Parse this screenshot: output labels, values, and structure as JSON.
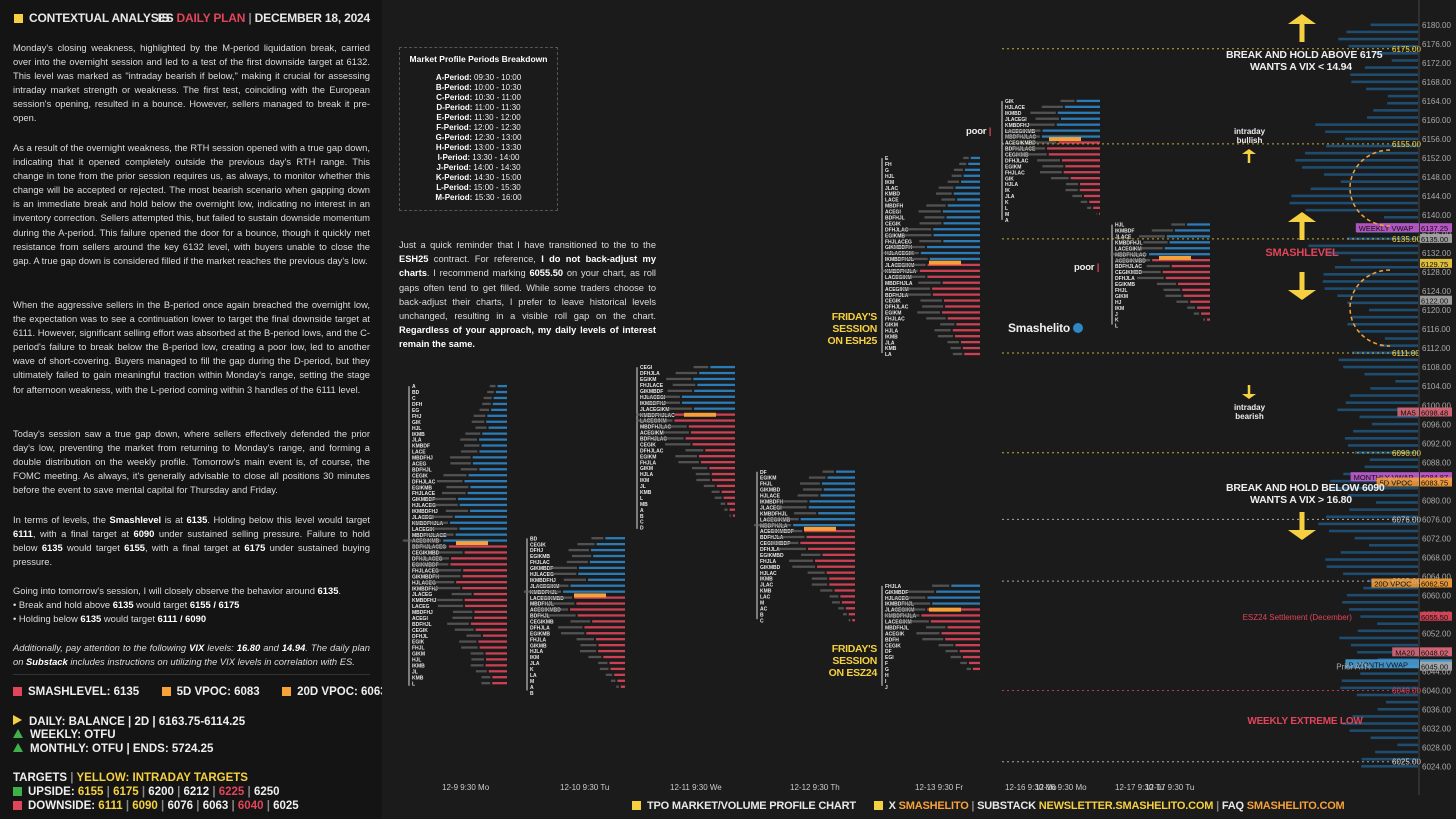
{
  "header": {
    "title": "CONTEXTUAL ANALYSIS",
    "plan_prefix": "ES",
    "plan_word": "DAILY PLAN",
    "date": "DECEMBER 18, 2024"
  },
  "paragraphs": [
    "Monday's closing weakness, highlighted by the M-period liquidation break, carried over into the overnight session and led to a test of the first downside target at 6132. This level was marked as \"intraday bearish if below,\" making it crucial for assessing intraday market strength or weakness. The first test, coinciding with the European session's opening, resulted in a bounce. However, sellers managed to break it pre-open.",
    "As a result of the overnight weakness, the RTH session opened with a true gap down, indicating that it opened completely outside the previous day's RTH range. This change in tone from the prior session requires us, as always, to monitor whether this change will be accepted or rejected. The most bearish scenario when gapping down is an immediate break and hold below the overnight low, indicating no interest in an inventory correction. Sellers attempted this, but failed to sustain downside momentum during the A-period. This failure opened the door for a bounce, though it quickly met resistance from sellers around the key 6132 level, with buyers unable to close the gap. A true gap down is considered filled if the market reaches the previous day's low.",
    "When the aggressive sellers in the B-period once again breached the overnight low, the expectation was to see a continuation lower to target the final downside target at 6111. However, significant selling effort was absorbed at the B-period lows, and the C-period's failure to break below the B-period low, creating a poor low, led to another wave of short-covering. Buyers managed to fill the gap during the D-period, but they ultimately failed to gain meaningful traction within Monday's range, setting the stage for afternoon weakness, with the L-period coming within 3 handles of the 6111 level.",
    "Today's session saw a true gap down, where sellers effectively defended the prior day's low, preventing the market from returning to Monday's range, and forming a double distribution on the weekly profile. Tomorrow's main event is, of course, the FOMC meeting. As always, it's generally advisable to close all positions 30 minutes before the event to save mental capital for Thursday and Friday."
  ],
  "levels_paragraph": {
    "p1": "In terms of levels, the ",
    "b1": "Smashlevel",
    "p2": " is at ",
    "b2": "6135",
    "p3": ". Holding below this level would target ",
    "b3": "6111",
    "p4": ", with a final target at ",
    "b4": "6090",
    "p5": " under sustained selling pressure. Failure to hold below ",
    "b5": "6135",
    "p6": " would target ",
    "b6": "6155",
    "p7": ", with a final target at ",
    "b7": "6175",
    "p8": " under sustained buying pressure."
  },
  "observe": {
    "intro_pre": "Going into tomorrow's session, I will closely observe the behavior around ",
    "intro_val": "6135",
    "intro_post": ".",
    "b1_pre": "• Break and hold above ",
    "b1_val": "6135",
    "b1_post": " would target ",
    "b1_targets": "6155 / 6175",
    "b2_pre": "• Holding below ",
    "b2_val": "6135",
    "b2_post": " would target ",
    "b2_targets": "6111 / 6090"
  },
  "vix_note": {
    "p1": "Additionally, pay attention to the following ",
    "b1": "VIX",
    "p2": " levels: ",
    "b2": "16.80",
    "p3": " and ",
    "b3": "14.94",
    "p4": ". The daily plan on ",
    "b4": "Substack",
    "p5": " includes instructions on utilizing the VIX levels in correlation with ES."
  },
  "key_levels": [
    {
      "label": "SMASHLEVEL: 6135",
      "color": "#e0455a"
    },
    {
      "label": "5D VPOC: 6083",
      "color": "#f7a13a"
    },
    {
      "label": "20D VPOC: 6063",
      "color": "#f7a13a"
    }
  ],
  "trend": {
    "daily": "DAILY: BALANCE | 2D | 6163.75-6114.25",
    "weekly": "WEEKLY: OTFU",
    "monthly": "MONTHLY: OTFU | ENDS: 5724.25"
  },
  "targets": {
    "title": "TARGETS",
    "yellow_label": "YELLOW: INTRADAY TARGETS",
    "upside_label": "UPSIDE:",
    "upside": [
      "6155",
      "6175",
      "6200",
      "6212",
      "6225",
      "6250"
    ],
    "downside_label": "DOWNSIDE:",
    "downside": [
      "6111",
      "6090",
      "6076",
      "6063",
      "6040",
      "6025"
    ]
  },
  "periods_box": {
    "title": "Market Profile Periods Breakdown",
    "items": [
      [
        "A-Period:",
        "09:30 - 10:00"
      ],
      [
        "B-Period:",
        "10:00 - 10:30"
      ],
      [
        "C-Period:",
        "10:30 - 11:00"
      ],
      [
        "D-Period:",
        "11:00 - 11:30"
      ],
      [
        "E-Period:",
        "11:30 - 12:00"
      ],
      [
        "F-Period:",
        "12:00 - 12:30"
      ],
      [
        "G-Period:",
        "12:30 - 13:00"
      ],
      [
        "H-Period:",
        "13:00 - 13:30"
      ],
      [
        "I-Period:",
        "13:30 - 14:00"
      ],
      [
        "J-Period:",
        "14:00 - 14:30"
      ],
      [
        "K-Period:",
        "14:30 - 15:00"
      ],
      [
        "L-Period:",
        "15:00 - 15:30"
      ],
      [
        "M-Period:",
        "15:30 - 16:00"
      ]
    ]
  },
  "reminder": {
    "p1": "Just a quick reminder that I have transitioned to the to the ",
    "b1": "ESH25",
    "p2": " contract. For reference, ",
    "b2": "I do not back-adjust my charts",
    "p3": ". I recommend marking ",
    "b3": "6055.50",
    "p4": " on your chart, as roll gaps often tend to get filled. While some traders choose to back-adjust their charts, I prefer to leave historical levels unchanged, resulting in a visible roll gap on the chart. ",
    "b4": "Regardless of your approach, my daily levels of interest remain the same."
  },
  "chart_data": {
    "type": "tpo_market_profile",
    "y_ticks": [
      6180,
      6176,
      6172,
      6168,
      6164,
      6160,
      6156,
      6152,
      6148,
      6144,
      6140,
      6136,
      6132,
      6128,
      6124,
      6120,
      6116,
      6112,
      6108,
      6104,
      6100,
      6096,
      6092,
      6088,
      6084,
      6080,
      6076,
      6072,
      6068,
      6064,
      6060,
      6056,
      6052,
      6048,
      6044,
      6040,
      6036,
      6032,
      6028,
      6024
    ],
    "ylim": [
      6022,
      6184
    ],
    "x_labels": [
      "12-9  9:30 Mo",
      "12-10  9:30 Tu",
      "12-11  9:30 We",
      "12-12  9:30 Th",
      "12-13  9:30 Fr",
      "12-16  9:30 Mo",
      "12-17  9:30 Tu"
    ],
    "levels": [
      {
        "price": 6175,
        "label": "6175.00",
        "color": "#f5d040",
        "style": "dotted"
      },
      {
        "price": 6155,
        "label": "6155.00",
        "color": "#f5d040",
        "style": "dotted"
      },
      {
        "price": 6135,
        "label": "6135.00",
        "color": "#f5d040",
        "style": "dotted"
      },
      {
        "price": 6111,
        "label": "6111.00",
        "color": "#f5d040",
        "style": "dotted"
      },
      {
        "price": 6090,
        "label": "6090.00",
        "color": "#f5d040",
        "style": "dotted"
      },
      {
        "price": 6076,
        "label": "6076.00",
        "color": "#cccccc",
        "style": "dotted"
      },
      {
        "price": 6063,
        "label": "6063.00",
        "color": "#cccccc",
        "style": "dotted"
      },
      {
        "price": 6040,
        "label": "6040.00",
        "color": "#e0455a",
        "style": "dotted"
      },
      {
        "price": 6025,
        "label": "6025.00",
        "color": "#cccccc",
        "style": "dotted"
      }
    ],
    "price_labels": [
      {
        "price": 6137.25,
        "text": "WEEKLY VWAP",
        "value": "6137.25",
        "color": "#c95cd6"
      },
      {
        "price": 6135.0,
        "text": "",
        "value": "6135.00",
        "color": "#aaaaaa"
      },
      {
        "price": 6129.75,
        "text": "",
        "value": "6129.75",
        "color": "#f5d040"
      },
      {
        "price": 6122.0,
        "text": "",
        "value": "6122.00",
        "color": "#aaaaaa"
      },
      {
        "price": 6098.48,
        "text": "MA5",
        "value": "6098.48",
        "color": "#e06a7a"
      },
      {
        "price": 6084.87,
        "text": "MONTHLY VWAP",
        "value": "6084.87",
        "color": "#c95cd6"
      },
      {
        "price": 6083.75,
        "text": "5D VPOC",
        "value": "6083.75",
        "color": "#f7a13a"
      },
      {
        "price": 6062.5,
        "text": "20D VPOC",
        "value": "6062.50",
        "color": "#f7a13a"
      },
      {
        "price": 6055.5,
        "text": "ESZ24 Settlement (December)",
        "value": "6055.50",
        "color": "#e0455a"
      },
      {
        "price": 6048.02,
        "text": "MA20",
        "value": "6048.02",
        "color": "#e06a7a"
      },
      {
        "price": 6045.5,
        "text": "P. MONTH VWAP",
        "value": "6045.50",
        "color": "#4aa3df"
      },
      {
        "price": 6045.0,
        "text": "Prior ATH",
        "value": "6045.00",
        "color": "#aaaaaa"
      }
    ],
    "notes": {
      "break_above": "BREAK AND HOLD ABOVE 6175",
      "vix_above": "WANTS A VIX < 14.94",
      "break_below": "BREAK AND HOLD BELOW 6090",
      "vix_below": "WANTS A VIX > 16.80",
      "smashlevel": "SMASHLEVEL",
      "weekly_low": "WEEKLY EXTREME LOW",
      "intraday_bullish": "intraday\nbullish",
      "intraday_bearish": "intraday\nbearish",
      "poor": "poor",
      "friday_esh25": "FRIDAY'S SESSION\nON ESH25",
      "friday_esz24": "FRIDAY'S SESSION\nON ESZ24",
      "watermark": "Smashelito"
    },
    "sessions": [
      {
        "name": "12-9",
        "x": 412,
        "high": 6104,
        "low": 6041,
        "vpoc": 6071
      },
      {
        "name": "12-10",
        "x": 530,
        "high": 6072,
        "low": 6040,
        "vpoc": 6060
      },
      {
        "name": "12-11",
        "x": 640,
        "high": 6108,
        "low": 6074,
        "vpoc": 6098
      },
      {
        "name": "12-12",
        "x": 760,
        "high": 6086,
        "low": 6055,
        "vpoc": 6074
      },
      {
        "name": "12-13 ESH25",
        "x": 885,
        "high": 6152,
        "low": 6111,
        "vpoc": 6130
      },
      {
        "name": "12-13 ESZ24",
        "x": 885,
        "high": 6062,
        "low": 6041,
        "vpoc": 6057
      },
      {
        "name": "12-16",
        "x": 1005,
        "high": 6164,
        "low": 6139,
        "vpoc": 6156
      },
      {
        "name": "12-17",
        "x": 1115,
        "high": 6138,
        "low": 6117,
        "vpoc": 6131
      }
    ]
  },
  "footer": {
    "chart_label": "TPO MARKET/VOLUME PROFILE CHART",
    "x_label": "X",
    "x_value": "SMASHELITO",
    "substack_label": "SUBSTACK",
    "substack_value": "NEWSLETTER.SMASHELITO.COM",
    "faq_label": "FAQ",
    "faq_value": "SMASHELITO.COM"
  },
  "colors": {
    "yellow": "#f5d040",
    "red": "#e0455a",
    "orange": "#f7a13a",
    "green": "#3fb04a",
    "blue": "#2e86c9"
  }
}
